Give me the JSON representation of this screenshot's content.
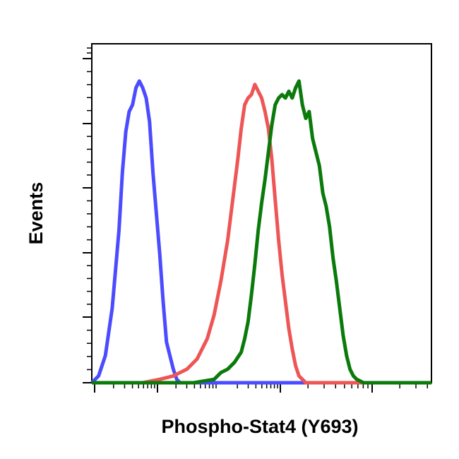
{
  "chart_data": {
    "type": "line",
    "title": "",
    "xlabel": "Phospho-Stat4 (Y693)",
    "ylabel": "Events",
    "x_scale": "log",
    "xlim": [
      0,
      100
    ],
    "ylim": [
      0,
      100
    ],
    "grid": false,
    "legend": "none",
    "series": [
      {
        "color": "#4b4bff",
        "points": [
          [
            0,
            0
          ],
          [
            2,
            2
          ],
          [
            4,
            8
          ],
          [
            6,
            22
          ],
          [
            8,
            45
          ],
          [
            9,
            62
          ],
          [
            10,
            74
          ],
          [
            11,
            80
          ],
          [
            12,
            82
          ],
          [
            13,
            87
          ],
          [
            14,
            89
          ],
          [
            15,
            87
          ],
          [
            16,
            84
          ],
          [
            17,
            77
          ],
          [
            18,
            62
          ],
          [
            19,
            50
          ],
          [
            20,
            38
          ],
          [
            21,
            24
          ],
          [
            22,
            12
          ],
          [
            23,
            8
          ],
          [
            24,
            4
          ],
          [
            25,
            1
          ],
          [
            26,
            0
          ],
          [
            100,
            0
          ]
        ]
      },
      {
        "color": "#ee5555",
        "points": [
          [
            0,
            0
          ],
          [
            15,
            0
          ],
          [
            20,
            1
          ],
          [
            24,
            2
          ],
          [
            28,
            4
          ],
          [
            31,
            7
          ],
          [
            34,
            13
          ],
          [
            36,
            20
          ],
          [
            38,
            30
          ],
          [
            40,
            42
          ],
          [
            41,
            50
          ],
          [
            42,
            58
          ],
          [
            43,
            66
          ],
          [
            44,
            75
          ],
          [
            45,
            82
          ],
          [
            46,
            84
          ],
          [
            47,
            85
          ],
          [
            48,
            88
          ],
          [
            49,
            86
          ],
          [
            50,
            84
          ],
          [
            51,
            80
          ],
          [
            52,
            75
          ],
          [
            53,
            66
          ],
          [
            54,
            54
          ],
          [
            55,
            42
          ],
          [
            56,
            32
          ],
          [
            57,
            24
          ],
          [
            58,
            16
          ],
          [
            59,
            10
          ],
          [
            60,
            5
          ],
          [
            61,
            2
          ],
          [
            62,
            1
          ],
          [
            63,
            0
          ],
          [
            100,
            0
          ]
        ]
      },
      {
        "color": "#0a7a0a",
        "points": [
          [
            0,
            0
          ],
          [
            30,
            0
          ],
          [
            36,
            1
          ],
          [
            38,
            3
          ],
          [
            40,
            4
          ],
          [
            42,
            6
          ],
          [
            44,
            9
          ],
          [
            45,
            13
          ],
          [
            46,
            18
          ],
          [
            47,
            26
          ],
          [
            48,
            35
          ],
          [
            49,
            45
          ],
          [
            50,
            53
          ],
          [
            51,
            60
          ],
          [
            52,
            68
          ],
          [
            53,
            76
          ],
          [
            54,
            82
          ],
          [
            55,
            84
          ],
          [
            56,
            85
          ],
          [
            57,
            84
          ],
          [
            58,
            86
          ],
          [
            59,
            84
          ],
          [
            60,
            87
          ],
          [
            61,
            89
          ],
          [
            62,
            82
          ],
          [
            63,
            78
          ],
          [
            64,
            80
          ],
          [
            65,
            72
          ],
          [
            66,
            68
          ],
          [
            67,
            64
          ],
          [
            68,
            56
          ],
          [
            69,
            52
          ],
          [
            70,
            46
          ],
          [
            71,
            37
          ],
          [
            72,
            30
          ],
          [
            73,
            22
          ],
          [
            74,
            14
          ],
          [
            75,
            8
          ],
          [
            76,
            4
          ],
          [
            77,
            2
          ],
          [
            78,
            1
          ],
          [
            80,
            0
          ],
          [
            100,
            0
          ]
        ]
      }
    ]
  }
}
